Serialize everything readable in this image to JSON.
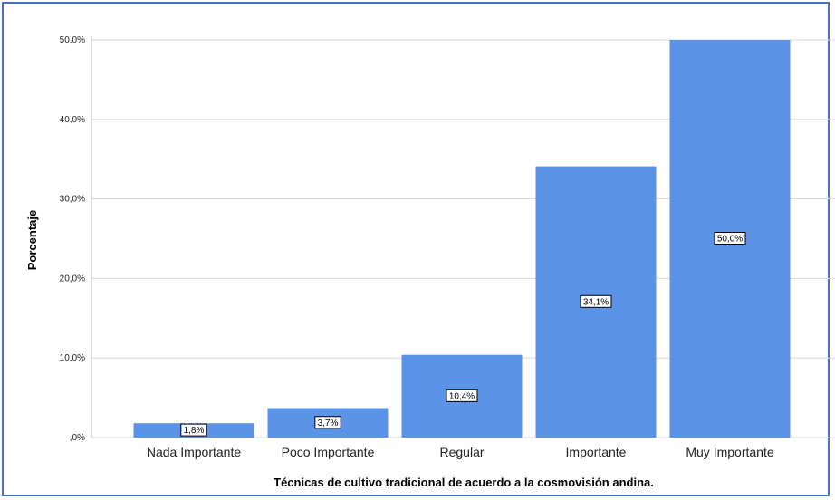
{
  "chart_data": {
    "type": "bar",
    "title": "",
    "xlabel": "Técnicas de cultivo tradicional de acuerdo a la cosmovisión andina.",
    "ylabel": "Porcentaje",
    "categories": [
      "Nada Importante",
      "Poco Importante",
      "Regular",
      "Importante",
      "Muy Importante"
    ],
    "values": [
      1.8,
      3.7,
      10.4,
      34.1,
      50.0
    ],
    "data_labels": [
      "1,8%",
      "3,7%",
      "10,4%",
      "34,1%",
      "50,0%"
    ],
    "y_ticks": [
      0,
      10,
      20,
      30,
      40,
      50
    ],
    "y_tick_labels": [
      ",0%",
      "10,0%",
      "20,0%",
      "30,0%",
      "40,0%",
      "50,0%"
    ],
    "ylim": [
      0,
      50
    ],
    "grid": true,
    "legend": "none",
    "colors": {
      "bar": "#5b93e6",
      "grid": "#d9d9d9",
      "frame": "#4472c4"
    }
  }
}
